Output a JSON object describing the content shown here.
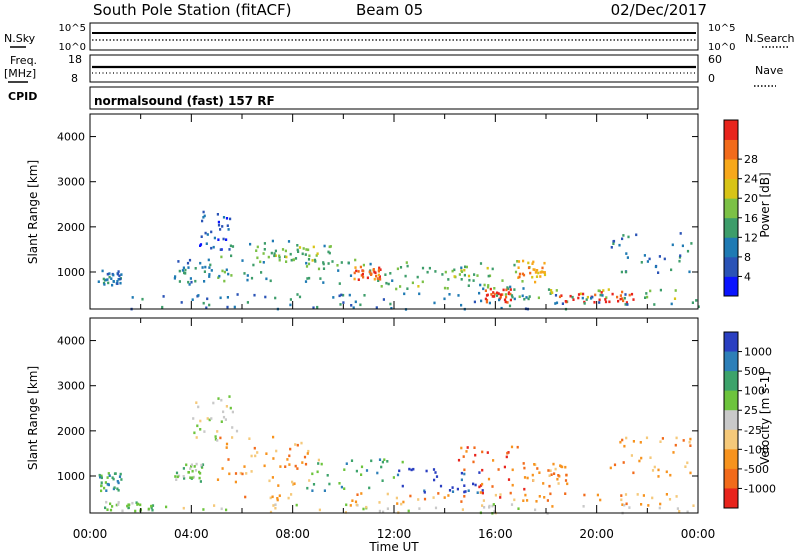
{
  "header": {
    "title": "South Pole Station (fitACF)",
    "beam": "Beam 05",
    "date": "02/Dec/2017"
  },
  "status": {
    "nsky_label": "N.Sky",
    "nsearch_label": "N.Search",
    "freq_label": "Freq.",
    "freq_unit": "[MHz]",
    "nave_label": "Nave",
    "cpid_label": "CPID",
    "cpid_value": "normalsound (fast) 157 RF",
    "noise_left_ticks": [
      "10^5",
      "10^0"
    ],
    "noise_right_ticks": [
      "10^5",
      "10^0"
    ],
    "freq_ticks": [
      "18",
      "8"
    ],
    "nave_ticks": [
      "60",
      "0"
    ]
  },
  "chart_data": [
    {
      "type": "heatmap",
      "name": "power",
      "ylabel": "Slant Range [km]",
      "ylim": [
        180,
        4500
      ],
      "yticks": [
        "1000",
        "2000",
        "3000",
        "4000"
      ],
      "xlim": [
        0,
        24
      ],
      "colorbar": {
        "label": "Power [dB]",
        "ticks": [
          "4",
          "8",
          "12",
          "16",
          "20",
          "24",
          "28"
        ],
        "colors": [
          "#0a14ff",
          "#2a53b6",
          "#1f7ab3",
          "#3d9d6a",
          "#7cc146",
          "#d8c417",
          "#f7a81b",
          "#f26b1b",
          "#e8241c"
        ]
      },
      "regions": [
        {
          "t0": 0.3,
          "t1": 1.2,
          "r0": 700,
          "r1": 1100,
          "c": 2
        },
        {
          "t0": 3.3,
          "t1": 5.0,
          "r0": 750,
          "r1": 1300,
          "c": 2
        },
        {
          "t0": 4.0,
          "t1": 5.5,
          "r0": 1500,
          "r1": 2400,
          "c": 1
        },
        {
          "t0": 5.0,
          "t1": 9.5,
          "r0": 800,
          "r1": 1800,
          "c": 3
        },
        {
          "t0": 6.5,
          "t1": 9.0,
          "r0": 1200,
          "r1": 1600,
          "c": 4
        },
        {
          "t0": 8.5,
          "t1": 12.5,
          "r0": 700,
          "r1": 1300,
          "c": 3
        },
        {
          "t0": 10.3,
          "t1": 11.5,
          "r0": 850,
          "r1": 1150,
          "c": 7
        },
        {
          "t0": 12.0,
          "t1": 16.0,
          "r0": 650,
          "r1": 1200,
          "c": 4
        },
        {
          "t0": 14.5,
          "t1": 17.5,
          "r0": 500,
          "r1": 1300,
          "c": 3
        },
        {
          "t0": 15.5,
          "t1": 16.6,
          "r0": 350,
          "r1": 650,
          "c": 8
        },
        {
          "t0": 16.8,
          "t1": 18.0,
          "r0": 800,
          "r1": 1300,
          "c": 6
        },
        {
          "t0": 16.0,
          "t1": 23.5,
          "r0": 350,
          "r1": 650,
          "c": 4
        },
        {
          "t0": 18.5,
          "t1": 21.5,
          "r0": 350,
          "r1": 600,
          "c": 8
        },
        {
          "t0": 20.5,
          "t1": 23.8,
          "r0": 1000,
          "r1": 1900,
          "c": 2
        },
        {
          "t0": 1.5,
          "t1": 24.0,
          "r0": 200,
          "r1": 550,
          "c": 2
        }
      ]
    },
    {
      "type": "heatmap",
      "name": "velocity",
      "xlabel": "Time UT",
      "ylabel": "Slant Range [km]",
      "ylim": [
        180,
        4500
      ],
      "yticks": [
        "1000",
        "2000",
        "3000",
        "4000"
      ],
      "xlim": [
        0,
        24
      ],
      "xticks": [
        "00:00",
        "04:00",
        "08:00",
        "12:00",
        "16:00",
        "20:00",
        "00:00"
      ],
      "colorbar": {
        "label": "Velocity [m s-1]",
        "ticks": [
          "1000",
          "500",
          "100",
          "25",
          "-25",
          "-100",
          "-500",
          "-1000"
        ],
        "colors": [
          "#2a3fc1",
          "#2d7fb8",
          "#3da36b",
          "#6dc43d",
          "#c9c9c9",
          "#f5c97a",
          "#f7931e",
          "#f26b1b",
          "#e8241c"
        ]
      },
      "regions": [
        {
          "t0": 0.3,
          "t1": 1.2,
          "r0": 700,
          "r1": 1100,
          "c": 2
        },
        {
          "t0": 0.5,
          "t1": 2.5,
          "r0": 250,
          "r1": 450,
          "c": 3
        },
        {
          "t0": 3.3,
          "t1": 4.5,
          "r0": 900,
          "r1": 1300,
          "c": 3
        },
        {
          "t0": 4.0,
          "t1": 5.8,
          "r0": 1800,
          "r1": 2800,
          "c": 4
        },
        {
          "t0": 5.0,
          "t1": 9.0,
          "r0": 800,
          "r1": 1900,
          "c": 6
        },
        {
          "t0": 8.5,
          "t1": 12.5,
          "r0": 700,
          "r1": 1400,
          "c": 2
        },
        {
          "t0": 12.0,
          "t1": 15.5,
          "r0": 650,
          "r1": 1200,
          "c": 0
        },
        {
          "t0": 14.5,
          "t1": 17.2,
          "r0": 500,
          "r1": 1700,
          "c": 7
        },
        {
          "t0": 17.0,
          "t1": 18.8,
          "r0": 800,
          "r1": 1300,
          "c": 6
        },
        {
          "t0": 5.5,
          "t1": 23.5,
          "r0": 350,
          "r1": 650,
          "c": 6
        },
        {
          "t0": 20.5,
          "t1": 23.8,
          "r0": 1000,
          "r1": 1900,
          "c": 6
        },
        {
          "t0": 1.5,
          "t1": 24.0,
          "r0": 200,
          "r1": 400,
          "c": 4
        }
      ]
    }
  ]
}
